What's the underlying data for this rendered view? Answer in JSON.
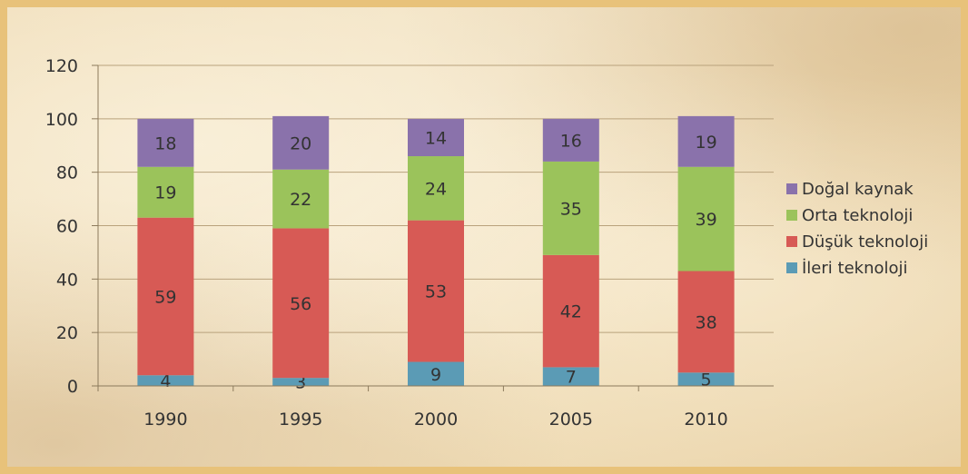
{
  "chart_data": {
    "type": "bar",
    "stacked": true,
    "categories": [
      "1990",
      "1995",
      "2000",
      "2005",
      "2010"
    ],
    "series": [
      {
        "name": "İleri teknoloji",
        "values": [
          4,
          3,
          9,
          7,
          5
        ],
        "color": "#5b9bb5"
      },
      {
        "name": "Düşük teknoloji",
        "values": [
          59,
          56,
          53,
          42,
          38
        ],
        "color": "#d75a55"
      },
      {
        "name": "Orta teknoloji",
        "values": [
          19,
          22,
          24,
          35,
          39
        ],
        "color": "#9bc35b"
      },
      {
        "name": "Doğal kaynak",
        "values": [
          18,
          20,
          14,
          16,
          19
        ],
        "color": "#8a72ab"
      }
    ],
    "ylim": [
      0,
      120
    ],
    "yticks": [
      "0",
      "20",
      "40",
      "60",
      "80",
      "100",
      "120"
    ],
    "grid": true,
    "legend_position": "right",
    "legend_order": [
      "Doğal kaynak",
      "Orta teknoloji",
      "Düşük teknoloji",
      "İleri teknoloji"
    ]
  }
}
